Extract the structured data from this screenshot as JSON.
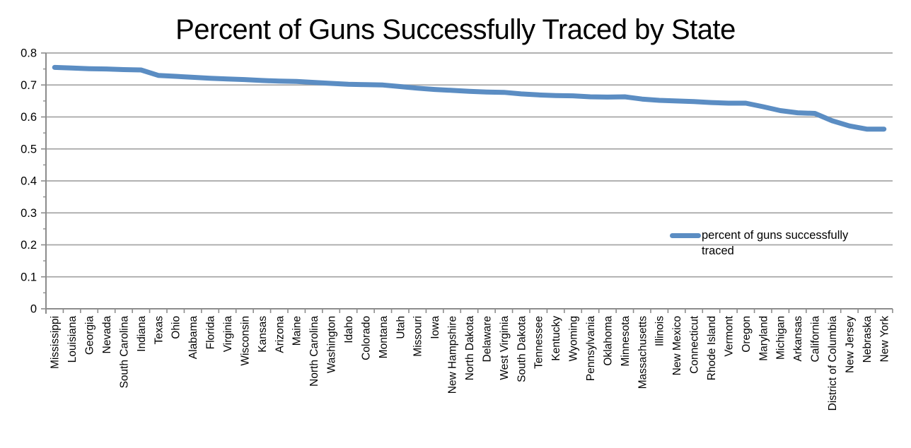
{
  "colors": {
    "series": "#5b8dc3",
    "gridline": "#a6a6a6",
    "axis": "#8c8c8c",
    "text": "#000000",
    "background": "#ffffff"
  },
  "legend": {
    "label": "percent of guns successfully traced",
    "position": "center-right"
  },
  "chart_data": {
    "type": "line",
    "title": "Percent of Guns Successfully Traced by State",
    "xlabel": "",
    "ylabel": "",
    "ylim": [
      0,
      0.8
    ],
    "ytick_major": 0.1,
    "ytick_minor": 0.05,
    "ytick_labels": [
      "0.8",
      "0.7",
      "0.6",
      "0.5",
      "0.4",
      "0.3",
      "0.2",
      "0.1",
      "0"
    ],
    "grid": true,
    "legend_position": "center-right",
    "categories": [
      "Mississippi",
      "Louisiana",
      "Georgia",
      "Nevada",
      "South Carolina",
      "Indiana",
      "Texas",
      "Ohio",
      "Alabama",
      "Florida",
      "Virginia",
      "Wisconsin",
      "Kansas",
      "Arizona",
      "Maine",
      "North Carolina",
      "Washington",
      "Idaho",
      "Colorado",
      "Montana",
      "Utah",
      "Missouri",
      "Iowa",
      "New Hampshire",
      "North Dakota",
      "Delaware",
      "West Virginia",
      "South Dakota",
      "Tennessee",
      "Kentucky",
      "Wyoming",
      "Pennsylvania",
      "Oklahoma",
      "Minnesota",
      "Massachusetts",
      "Illinois",
      "New Mexico",
      "Connecticut",
      "Rhode Island",
      "Vermont",
      "Oregon",
      "Maryland",
      "Michigan",
      "Arkansas",
      "California",
      "District of Columbia",
      "New Jersey",
      "Nebraska",
      "New York"
    ],
    "series": [
      {
        "name": "percent of guns successfully traced",
        "color": "#5b8dc3",
        "values": [
          0.755,
          0.753,
          0.751,
          0.75,
          0.748,
          0.747,
          0.73,
          0.727,
          0.724,
          0.721,
          0.719,
          0.717,
          0.714,
          0.712,
          0.711,
          0.708,
          0.705,
          0.702,
          0.701,
          0.7,
          0.695,
          0.69,
          0.686,
          0.683,
          0.68,
          0.678,
          0.677,
          0.672,
          0.669,
          0.667,
          0.666,
          0.663,
          0.662,
          0.663,
          0.656,
          0.652,
          0.65,
          0.648,
          0.645,
          0.643,
          0.643,
          0.632,
          0.62,
          0.613,
          0.611,
          0.588,
          0.572,
          0.562,
          0.562
        ]
      }
    ]
  }
}
